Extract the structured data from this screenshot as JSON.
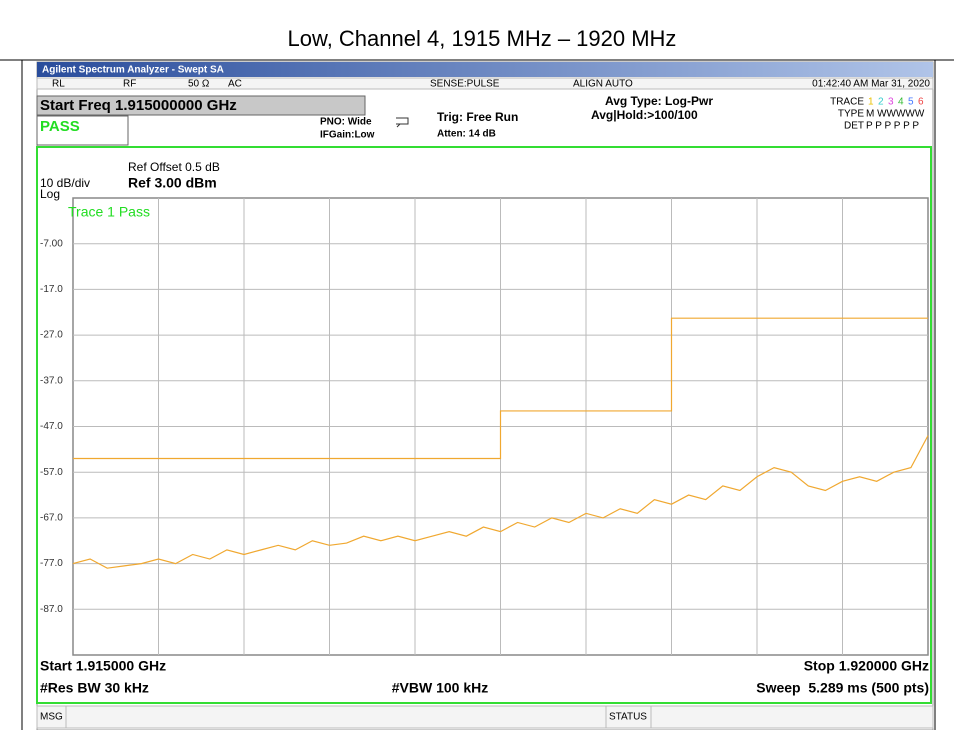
{
  "page_title": "Low, Channel 4, 1915 MHz – 1920 MHz",
  "analyzer": {
    "window_title": "Agilent Spectrum Analyzer - Swept SA",
    "status_row": [
      "RL",
      "RF",
      "50 Ω",
      "AC",
      "SENSE:PULSE",
      "ALIGN AUTO",
      "01:42:40 AM Mar 31, 2020"
    ],
    "start_freq": "Start Freq 1.915000000 GHz",
    "pass": "PASS",
    "pno": "PNO: Wide",
    "ifgain": "IFGain:Low",
    "trig": "Trig: Free Run",
    "atten": "Atten: 14 dB",
    "avg_type": "Avg Type: Log-Pwr",
    "avg_hold": "Avg|Hold:>100/100",
    "trace_label": "TRACE",
    "trace_numbers": [
      "1",
      "2",
      "3",
      "4",
      "5",
      "6"
    ],
    "type_label": "TYPE",
    "type_value": "M WWWWW",
    "det_label": "DET",
    "det_value": "P P P P P P",
    "msg": "MSG",
    "status": "STATUS"
  },
  "chart_data": {
    "type": "line",
    "ref_offset": "Ref Offset 0.5 dB",
    "scale": "10 dB/div",
    "ref_level": "Ref 3.00 dBm",
    "scale_type": "Log",
    "annotation": "Trace 1 Pass",
    "start_label": "Start 1.915000 GHz",
    "stop_label": "Stop 1.920000 GHz",
    "rbw": "#Res BW 30 kHz",
    "vbw": "#VBW 100 kHz",
    "sweep": "Sweep  5.289 ms (500 pts)",
    "xlim": [
      1.915,
      1.92
    ],
    "ylim": [
      -97,
      3
    ],
    "xticks": [
      1.9155,
      1.916,
      1.9165,
      1.917,
      1.9175,
      1.918,
      1.9185,
      1.919,
      1.9195
    ],
    "yticks": [
      {
        "value": -7,
        "label": "-7.00"
      },
      {
        "value": -17,
        "label": "-17.0"
      },
      {
        "value": -27,
        "label": "-27.0"
      },
      {
        "value": -37,
        "label": "-37.0"
      },
      {
        "value": -47,
        "label": "-47.0"
      },
      {
        "value": -57,
        "label": "-57.0"
      },
      {
        "value": -67,
        "label": "-67.0"
      },
      {
        "value": -77,
        "label": "-77.0"
      },
      {
        "value": -87,
        "label": "-87.0"
      }
    ],
    "grid": true,
    "series": [
      {
        "color": "#f0a830",
        "x": [
          1.915,
          1.9175,
          1.9175,
          1.9185,
          1.9185,
          1.92
        ],
        "values": [
          -54,
          -54,
          -43.6,
          -43.6,
          -23.3,
          -23.3
        ]
      },
      {
        "color": "#f0a830",
        "x": [
          1.915,
          1.9151,
          1.9152,
          1.9153,
          1.9154,
          1.9155,
          1.9156,
          1.9157,
          1.9158,
          1.9159,
          1.916,
          1.9161,
          1.9162,
          1.9163,
          1.9164,
          1.9165,
          1.9166,
          1.9167,
          1.9168,
          1.9169,
          1.917,
          1.9171,
          1.9172,
          1.9173,
          1.9174,
          1.9175,
          1.9176,
          1.9177,
          1.9178,
          1.9179,
          1.918,
          1.9181,
          1.9182,
          1.9183,
          1.9184,
          1.9185,
          1.9186,
          1.9187,
          1.9188,
          1.9189,
          1.919,
          1.9191,
          1.9192,
          1.9193,
          1.9194,
          1.9195,
          1.9196,
          1.9197,
          1.9198,
          1.9199,
          1.92
        ],
        "values": [
          -77,
          -76,
          -78,
          -77.5,
          -77,
          -76,
          -77,
          -75,
          -76,
          -74,
          -75,
          -74,
          -73,
          -74,
          -72,
          -73,
          -72.5,
          -71,
          -72,
          -71,
          -72,
          -71,
          -70,
          -71,
          -69,
          -70,
          -68,
          -69,
          -67,
          -68,
          -66,
          -67,
          -65,
          -66,
          -63,
          -64,
          -62,
          -63,
          -60,
          -61,
          -58,
          -56,
          -57,
          -60,
          -61,
          -59,
          -58,
          -59,
          -57,
          -56,
          -49
        ]
      }
    ]
  }
}
